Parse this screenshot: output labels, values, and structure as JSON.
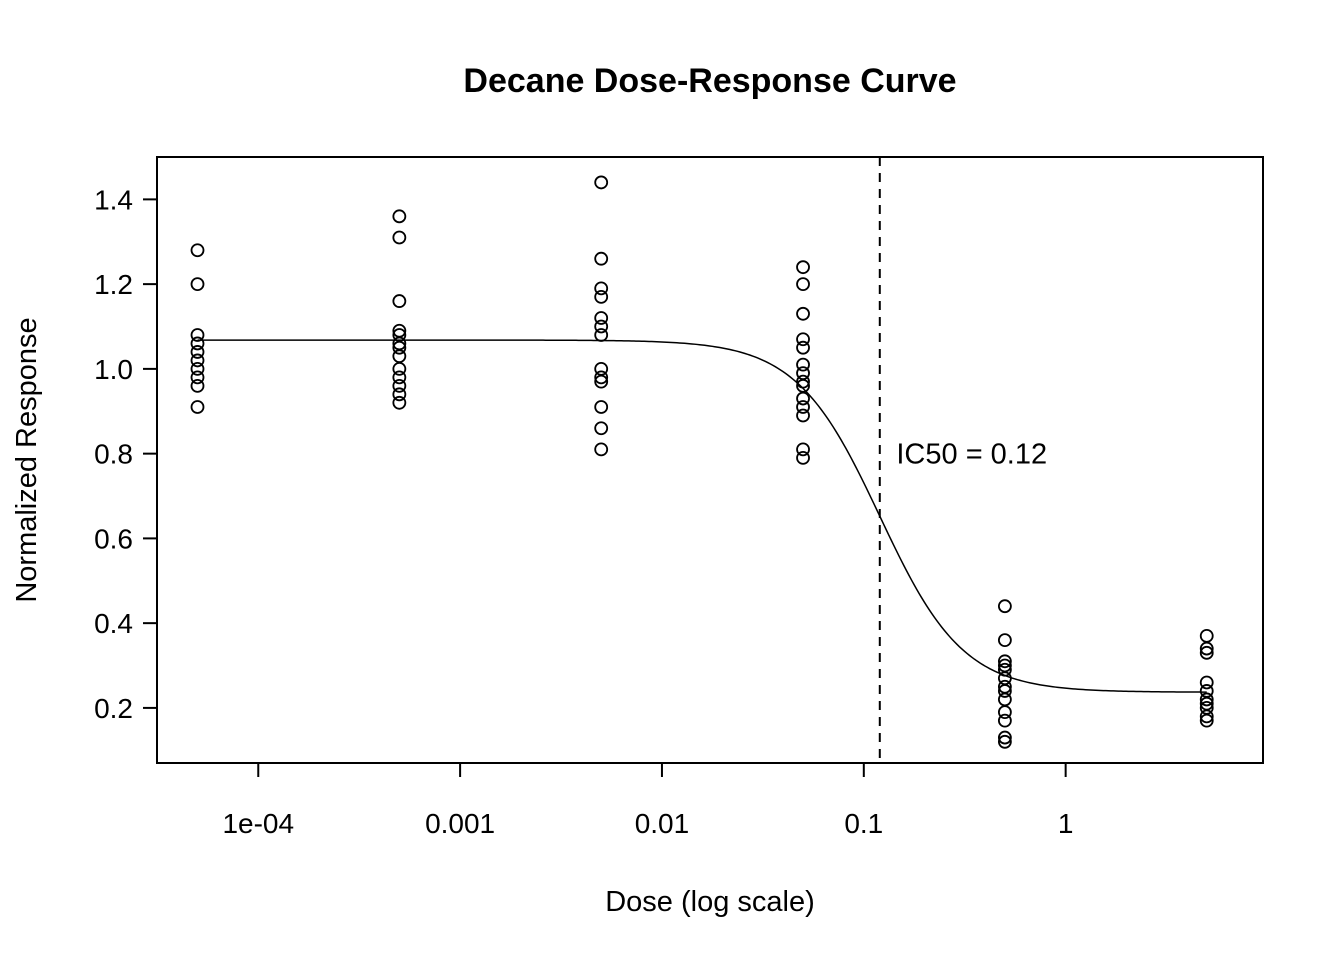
{
  "chart_data": {
    "type": "scatter",
    "title": "Decane Dose-Response Curve",
    "xlabel": "Dose (log scale)",
    "ylabel": "Normalized Response",
    "x_scale": "log",
    "xlim": [
      3.15e-05,
      9.5
    ],
    "ylim": [
      0.07,
      1.5
    ],
    "x_ticks": [
      {
        "value": 0.0001,
        "label": "1e-04"
      },
      {
        "value": 0.001,
        "label": "0.001"
      },
      {
        "value": 0.01,
        "label": "0.01"
      },
      {
        "value": 0.1,
        "label": "0.1"
      },
      {
        "value": 1,
        "label": "1"
      }
    ],
    "y_ticks": [
      {
        "value": 0.2,
        "label": "0.2"
      },
      {
        "value": 0.4,
        "label": "0.4"
      },
      {
        "value": 0.6,
        "label": "0.6"
      },
      {
        "value": 0.8,
        "label": "0.8"
      },
      {
        "value": 1.0,
        "label": "1.0"
      },
      {
        "value": 1.2,
        "label": "1.2"
      },
      {
        "value": 1.4,
        "label": "1.4"
      }
    ],
    "points": [
      {
        "dose": 5e-05,
        "responses": [
          1.28,
          1.2,
          1.08,
          1.06,
          1.04,
          1.02,
          1.0,
          0.98,
          0.96,
          0.91
        ]
      },
      {
        "dose": 0.0005,
        "responses": [
          1.36,
          1.31,
          1.16,
          1.09,
          1.08,
          1.06,
          1.05,
          1.03,
          1.0,
          0.98,
          0.96,
          0.94,
          0.92
        ]
      },
      {
        "dose": 0.005,
        "responses": [
          1.44,
          1.26,
          1.19,
          1.17,
          1.12,
          1.1,
          1.08,
          1.0,
          0.98,
          0.97,
          0.91,
          0.86,
          0.81
        ]
      },
      {
        "dose": 0.05,
        "responses": [
          1.24,
          1.2,
          1.13,
          1.07,
          1.05,
          1.01,
          0.99,
          0.97,
          0.96,
          0.93,
          0.91,
          0.89,
          0.81,
          0.79
        ]
      },
      {
        "dose": 0.5,
        "responses": [
          0.44,
          0.36,
          0.31,
          0.3,
          0.29,
          0.27,
          0.25,
          0.24,
          0.22,
          0.19,
          0.17,
          0.13,
          0.12
        ]
      },
      {
        "dose": 5,
        "responses": [
          0.37,
          0.34,
          0.33,
          0.26,
          0.24,
          0.22,
          0.21,
          0.2,
          0.18,
          0.17
        ]
      }
    ],
    "fit_curve": {
      "model": "4-parameter logistic",
      "top": 1.068,
      "bottom": 0.237,
      "ic50": 0.12,
      "hill": 2.1,
      "line_style": "solid"
    },
    "ic50_line": {
      "x": 0.12,
      "line_style": "dashed"
    },
    "annotation": {
      "text": "IC50 = 0.12",
      "x": 0.145,
      "y": 0.8
    },
    "grid": false,
    "legend": "none"
  }
}
